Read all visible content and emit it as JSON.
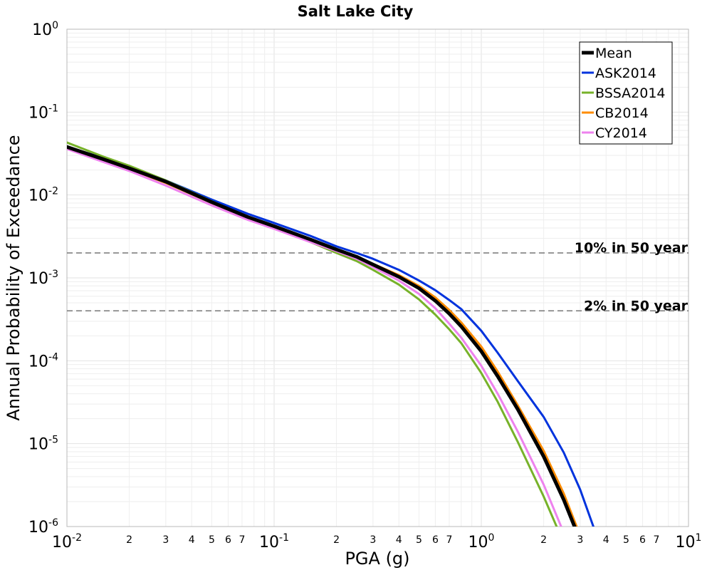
{
  "chart_data": {
    "type": "line",
    "title": "Salt Lake City",
    "xlabel": "PGA (g)",
    "ylabel": "Annual Probability of Exceedance",
    "xscale": "log",
    "yscale": "log",
    "xlim": [
      0.01,
      10
    ],
    "ylim": [
      1e-06,
      1
    ],
    "grid": true,
    "legend_position": "top-right",
    "x_major_ticks": [
      {
        "value": 0.01,
        "base": "10",
        "exp": "-2"
      },
      {
        "value": 0.1,
        "base": "10",
        "exp": "-1"
      },
      {
        "value": 1,
        "base": "10",
        "exp": "0"
      },
      {
        "value": 10,
        "base": "10",
        "exp": "1"
      }
    ],
    "x_minor_tick_labels": [
      "2",
      "3",
      "4",
      "5",
      "6",
      "7"
    ],
    "y_major_ticks": [
      {
        "value": 1,
        "base": "10",
        "exp": "0"
      },
      {
        "value": 0.1,
        "base": "10",
        "exp": "-1"
      },
      {
        "value": 0.01,
        "base": "10",
        "exp": "-2"
      },
      {
        "value": 0.001,
        "base": "10",
        "exp": "-3"
      },
      {
        "value": 0.0001,
        "base": "10",
        "exp": "-4"
      },
      {
        "value": 1e-05,
        "base": "10",
        "exp": "-5"
      },
      {
        "value": 1e-06,
        "base": "10",
        "exp": "-6"
      }
    ],
    "reference_lines": [
      {
        "label": "10% in 50 year",
        "y": 0.002
      },
      {
        "label": "2% in 50 year",
        "y": 0.0004
      }
    ],
    "x": [
      0.01,
      0.015,
      0.02,
      0.03,
      0.05,
      0.075,
      0.1,
      0.15,
      0.2,
      0.25,
      0.3,
      0.4,
      0.5,
      0.6,
      0.7,
      0.8,
      1.0,
      1.2,
      1.5,
      2.0,
      2.5,
      3.0,
      3.5,
      4.0
    ],
    "series": [
      {
        "name": "Mean",
        "color": "#000000",
        "width": 5,
        "values": [
          0.038,
          0.027,
          0.021,
          0.0145,
          0.0082,
          0.0054,
          0.0042,
          0.0029,
          0.0022,
          0.0018,
          0.00145,
          0.00103,
          0.00075,
          0.00053,
          0.00037,
          0.00026,
          0.00013,
          6.5e-05,
          2.6e-05,
          7e-06,
          2.1e-06,
          6.8e-07,
          null,
          null
        ]
      },
      {
        "name": "ASK2014",
        "color": "#0033dd",
        "width": 3,
        "values": [
          0.038,
          0.028,
          0.0215,
          0.015,
          0.0088,
          0.0059,
          0.0046,
          0.0032,
          0.0024,
          0.002,
          0.0017,
          0.00125,
          0.00093,
          0.00071,
          0.00054,
          0.00042,
          0.00023,
          0.000125,
          5.7e-05,
          2.1e-05,
          7.8e-06,
          2.8e-06,
          9.5e-07,
          null
        ]
      },
      {
        "name": "BSSA2014",
        "color": "#77b22a",
        "width": 3,
        "values": [
          0.043,
          0.029,
          0.0225,
          0.015,
          0.0084,
          0.0054,
          0.0041,
          0.0027,
          0.002,
          0.0016,
          0.00125,
          0.00083,
          0.00055,
          0.00036,
          0.00024,
          0.000163,
          7.1e-05,
          3.2e-05,
          1.05e-05,
          2.3e-06,
          6.3e-07,
          null,
          null,
          null
        ]
      },
      {
        "name": "CB2014",
        "color": "#ff8c00",
        "width": 3,
        "values": [
          0.038,
          0.027,
          0.0205,
          0.014,
          0.008,
          0.0052,
          0.0041,
          0.0029,
          0.0022,
          0.0018,
          0.00148,
          0.00108,
          0.0008,
          0.00058,
          0.00041,
          0.00029,
          0.000148,
          7.4e-05,
          2.9e-05,
          8.2e-06,
          2.5e-06,
          7.8e-07,
          null,
          null
        ]
      },
      {
        "name": "CY2014",
        "color": "#ee82ee",
        "width": 3,
        "values": [
          0.036,
          0.025,
          0.0195,
          0.013,
          0.0075,
          0.005,
          0.0039,
          0.0027,
          0.0021,
          0.0017,
          0.00135,
          0.00093,
          0.00064,
          0.00043,
          0.00028,
          0.00019,
          8.7e-05,
          4e-05,
          1.4e-05,
          3.2e-06,
          8.4e-07,
          null,
          null,
          null
        ]
      }
    ]
  }
}
